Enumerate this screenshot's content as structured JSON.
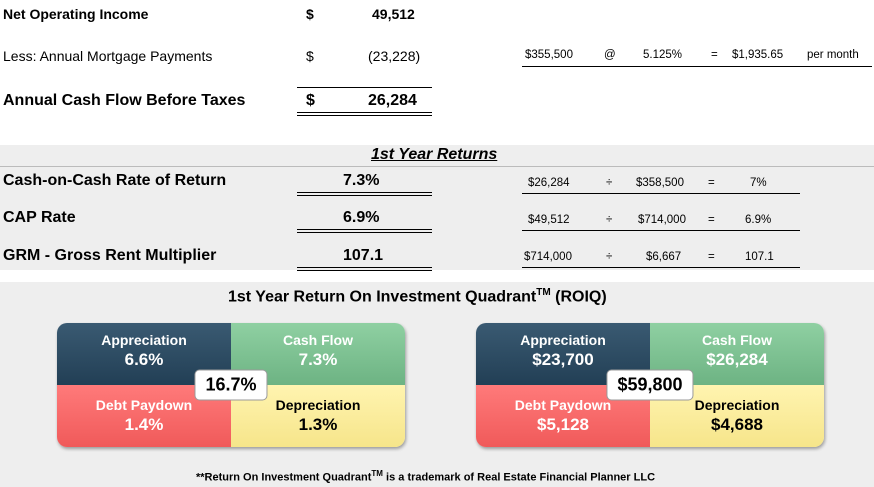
{
  "income": {
    "noi_label": "Net Operating Income",
    "noi_currency": "$",
    "noi_value": "49,512",
    "mortgage_label": "Less: Annual Mortgage Payments",
    "mortgage_currency": "$",
    "mortgage_value": "(23,228)",
    "cashflow_label": "Annual Cash Flow Before Taxes",
    "cashflow_currency": "$",
    "cashflow_value": "26,284"
  },
  "mortgage_calc": {
    "principal": "$355,500",
    "at": "@",
    "rate": "5.125%",
    "eq": "=",
    "payment": "$1,935.65",
    "per": "per month"
  },
  "returns": {
    "title": "1st Year Returns",
    "rows": [
      {
        "label": "Cash-on-Cash Rate of Return",
        "value": "7.3%",
        "a": "$26,284",
        "op": "÷",
        "b": "$358,500",
        "eq": "=",
        "result": "7%"
      },
      {
        "label": "CAP Rate",
        "value": "6.9%",
        "a": "$49,512",
        "op": "÷",
        "b": "$714,000",
        "eq": "=",
        "result": "6.9%"
      },
      {
        "label": "GRM - Gross Rent Multiplier",
        "value": "107.1",
        "a": "$714,000",
        "op": "÷",
        "b": "$6,667",
        "eq": "=",
        "result": "107.1"
      }
    ]
  },
  "roiq": {
    "title_main": "1st Year Return On Investment Quadrant",
    "title_tm": "TM",
    "title_suffix": " (ROIQ)",
    "left": {
      "appreciation_label": "Appreciation",
      "appreciation_value": "6.6%",
      "cashflow_label": "Cash Flow",
      "cashflow_value": "7.3%",
      "debt_label": "Debt Paydown",
      "debt_value": "1.4%",
      "depreciation_label": "Depreciation",
      "depreciation_value": "1.3%",
      "total": "16.7%"
    },
    "right": {
      "appreciation_label": "Appreciation",
      "appreciation_value": "$23,700",
      "cashflow_label": "Cash Flow",
      "cashflow_value": "$26,284",
      "debt_label": "Debt Paydown",
      "debt_value": "$5,128",
      "depreciation_label": "Depreciation",
      "depreciation_value": "$4,688",
      "total": "$59,800"
    },
    "footnote_pre": "**Return On Investment Quadrant",
    "footnote_tm": "TM",
    "footnote_post": " is a trademark of Real Estate Financial Planner LLC"
  },
  "colors": {
    "appreciation": "#2d4d65",
    "cashflow": "#7cc18f",
    "debt": "#f86868",
    "depreciation": "#f9eb9a",
    "band": "#eeeeee"
  }
}
